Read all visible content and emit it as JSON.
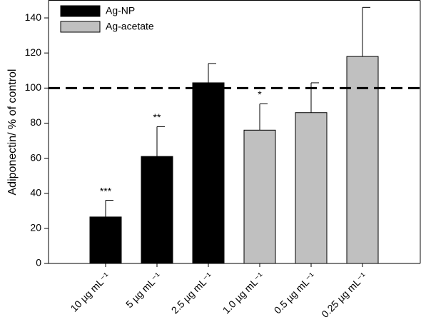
{
  "chart_data": {
    "type": "bar",
    "y_label": "Adiponectin/ % of control",
    "categories": [
      "10 µg mL⁻¹",
      "5 µg mL⁻¹",
      "2.5 µg mL⁻¹",
      "1.0 µg mL⁻¹",
      "0.5 µg mL⁻¹",
      "0.25 µg mL⁻¹"
    ],
    "series": [
      {
        "name": "Ag-NP",
        "color": "#000000",
        "values": [
          26.5,
          61,
          103,
          null,
          null,
          null
        ],
        "errors": [
          9.5,
          17,
          11,
          null,
          null,
          null
        ]
      },
      {
        "name": "Ag-acetate",
        "color": "#c0c0c0",
        "values": [
          null,
          null,
          null,
          76,
          86,
          118
        ],
        "errors": [
          null,
          null,
          null,
          15,
          17,
          28
        ]
      }
    ],
    "annotations": [
      {
        "text": "***",
        "category": "10 µg mL⁻¹"
      },
      {
        "text": "**",
        "category": "5 µg mL⁻¹"
      },
      {
        "text": "*",
        "category": "1.0 µg mL⁻¹"
      }
    ],
    "reference_line": 100,
    "ylim": [
      0,
      150
    ],
    "yticks": [
      0,
      20,
      40,
      60,
      80,
      100,
      120,
      140
    ],
    "legend": "top-left"
  }
}
